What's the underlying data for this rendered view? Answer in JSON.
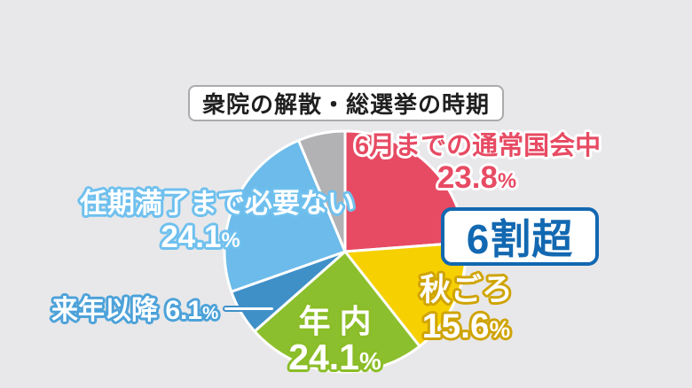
{
  "background_color": "#e8e8ea",
  "header": {
    "title": "衆院の解散・総選挙の時期"
  },
  "annotation": {
    "label": "6割超",
    "color": "#1268b1"
  },
  "chart_data": {
    "type": "pie",
    "title": "衆院の解散・総選挙の時期",
    "direction": "clockwise",
    "start_angle_deg": 0,
    "unit": "%",
    "slices": [
      {
        "label": "6月までの通常国会中",
        "value": 23.8,
        "color": "#e74b63"
      },
      {
        "label": "秋ごろ",
        "value": 15.6,
        "color": "#f6d001"
      },
      {
        "label": "年内",
        "display_label": "年 内",
        "value": 24.1,
        "color": "#8cbf2d"
      },
      {
        "label": "来年以降",
        "value": 6.1,
        "color": "#4090c8"
      },
      {
        "label": "任期満了まで必要ない",
        "value": 24.1,
        "color": "#6cbbea"
      },
      {
        "label": "",
        "value": 6.3,
        "color": "#b2b2b4"
      }
    ],
    "annotation": "6割超",
    "legend": "none",
    "label_style": "outlined text placed around slices"
  }
}
